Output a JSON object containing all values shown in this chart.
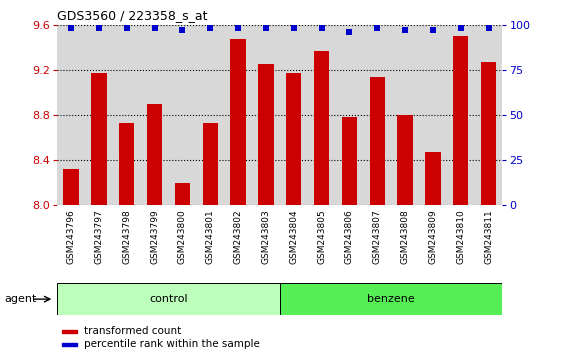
{
  "title": "GDS3560 / 223358_s_at",
  "categories": [
    "GSM243796",
    "GSM243797",
    "GSM243798",
    "GSM243799",
    "GSM243800",
    "GSM243801",
    "GSM243802",
    "GSM243803",
    "GSM243804",
    "GSM243805",
    "GSM243806",
    "GSM243807",
    "GSM243808",
    "GSM243809",
    "GSM243810",
    "GSM243811"
  ],
  "bar_values": [
    8.32,
    9.17,
    8.73,
    8.9,
    8.2,
    8.73,
    9.47,
    9.25,
    9.17,
    9.37,
    8.78,
    9.14,
    8.8,
    8.47,
    9.5,
    9.27
  ],
  "percentile_values": [
    98,
    98,
    98,
    98,
    97,
    98,
    98,
    98,
    98,
    98,
    96,
    98,
    97,
    97,
    98,
    98
  ],
  "bar_color": "#cc0000",
  "percentile_color": "#0000cc",
  "ylim_left": [
    8.0,
    9.6
  ],
  "ylim_right": [
    0,
    100
  ],
  "yticks_left": [
    8.0,
    8.4,
    8.8,
    9.2,
    9.6
  ],
  "yticks_right": [
    0,
    25,
    50,
    75,
    100
  ],
  "n_control": 8,
  "n_benzene": 8,
  "control_label": "control",
  "benzene_label": "benzene",
  "control_color": "#bbffbb",
  "benzene_color": "#55ee55",
  "agent_label": "agent",
  "legend_bar_label": "transformed count",
  "legend_pct_label": "percentile rank within the sample",
  "plot_bg_color": "#d8d8d8",
  "xtick_bg_color": "#d0d0d0",
  "bar_width": 0.55,
  "fig_width": 5.71,
  "fig_height": 3.54,
  "dpi": 100
}
